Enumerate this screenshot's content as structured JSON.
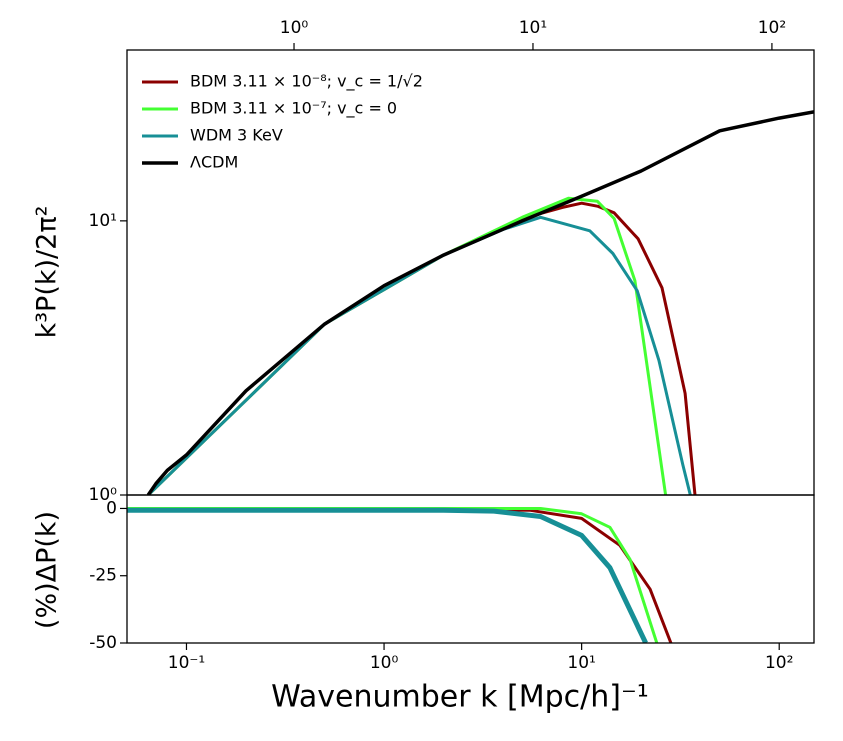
{
  "chart_data": [
    {
      "type": "line",
      "ylabel": "k³P(k)/2π²",
      "xscale": "log",
      "yscale": "log",
      "xlim": [
        0.05,
        150
      ],
      "ylim": [
        1,
        42
      ],
      "yticks": [
        {
          "value": 1,
          "label": "10⁰"
        },
        {
          "value": 10,
          "label": "10¹"
        }
      ],
      "x2lim": [
        0.2,
        150
      ],
      "x2ticks": [
        {
          "value": 1,
          "label": "10⁰"
        },
        {
          "value": 10,
          "label": "10¹"
        },
        {
          "value": 100,
          "label": "10²"
        }
      ],
      "legend": "upper left",
      "series": [
        {
          "name": "BDM 3.11 × 10⁻⁸; v_c = 1/√2",
          "color": "#8b0000",
          "linewidth": 3,
          "x": [
            0.064,
            0.5,
            2,
            5,
            8,
            10,
            12.1,
            14.6,
            19.3,
            25.5,
            33.4,
            37.5
          ],
          "values": [
            1,
            4.2,
            7.5,
            10.2,
            11.2,
            11.6,
            11.3,
            10.7,
            8.6,
            5.7,
            2.35,
            1
          ]
        },
        {
          "name": "BDM 3.11 × 10⁻⁷; v_c = 0",
          "color": "#44ff33",
          "linewidth": 3,
          "x": [
            0.064,
            0.5,
            2,
            5,
            8.6,
            12,
            14.6,
            18.6,
            26.6
          ],
          "values": [
            1,
            4.2,
            7.5,
            10.3,
            12.1,
            11.8,
            10.2,
            6.05,
            1
          ]
        },
        {
          "name": "WDM 3 KeV",
          "color": "#178f96",
          "linewidth": 3,
          "x": [
            0.064,
            0.5,
            2,
            4,
            6.2,
            8,
            11,
            14.4,
            19.1,
            24.6,
            32.5,
            35.5
          ],
          "values": [
            1,
            4.2,
            7.5,
            9.3,
            10.3,
            9.8,
            9.2,
            7.6,
            5.56,
            3.1,
            1.29,
            1
          ]
        },
        {
          "name": "ΛCDM",
          "color": "#000000",
          "linewidth": 3.5,
          "x": [
            0.064,
            0.07,
            0.08,
            0.1,
            0.2,
            0.5,
            1,
            2,
            5,
            10,
            20,
            50,
            100,
            150
          ],
          "values": [
            1,
            1.1,
            1.23,
            1.4,
            2.4,
            4.2,
            5.8,
            7.5,
            10,
            12.3,
            15.2,
            21.3,
            23.7,
            25
          ]
        }
      ]
    },
    {
      "type": "line",
      "xlabel": "Wavenumber k [Mpc/h]⁻¹",
      "ylabel": "(%)ΔP(k)",
      "xscale": "log",
      "xlim": [
        0.05,
        150
      ],
      "ylim": [
        -50,
        5
      ],
      "xticks": [
        {
          "value": 0.1,
          "label": "10⁻¹"
        },
        {
          "value": 1,
          "label": "10⁰"
        },
        {
          "value": 10,
          "label": "10¹"
        },
        {
          "value": 100,
          "label": "10²"
        }
      ],
      "yticks": [
        0,
        -25,
        -50
      ],
      "series": [
        {
          "color": "#8b0000",
          "linewidth": 3,
          "x": [
            0.05,
            2,
            5.5,
            10,
            15.6,
            22.2,
            28.3
          ],
          "values": [
            -0.5,
            -0.5,
            -0.7,
            -3.7,
            -13.7,
            -30,
            -50
          ]
        },
        {
          "color": "#44ff33",
          "linewidth": 3,
          "x": [
            0.05,
            2,
            6.2,
            10,
            13.9,
            17.6,
            24.0
          ],
          "values": [
            0,
            0,
            0,
            -2,
            -7,
            -19,
            -50
          ]
        },
        {
          "color": "#178f96",
          "linewidth": 5,
          "x": [
            0.05,
            2,
            3.6,
            6.2,
            10,
            13.9,
            21.1
          ],
          "values": [
            -0.7,
            -0.7,
            -1,
            -3,
            -10,
            -22,
            -50
          ]
        }
      ]
    }
  ]
}
